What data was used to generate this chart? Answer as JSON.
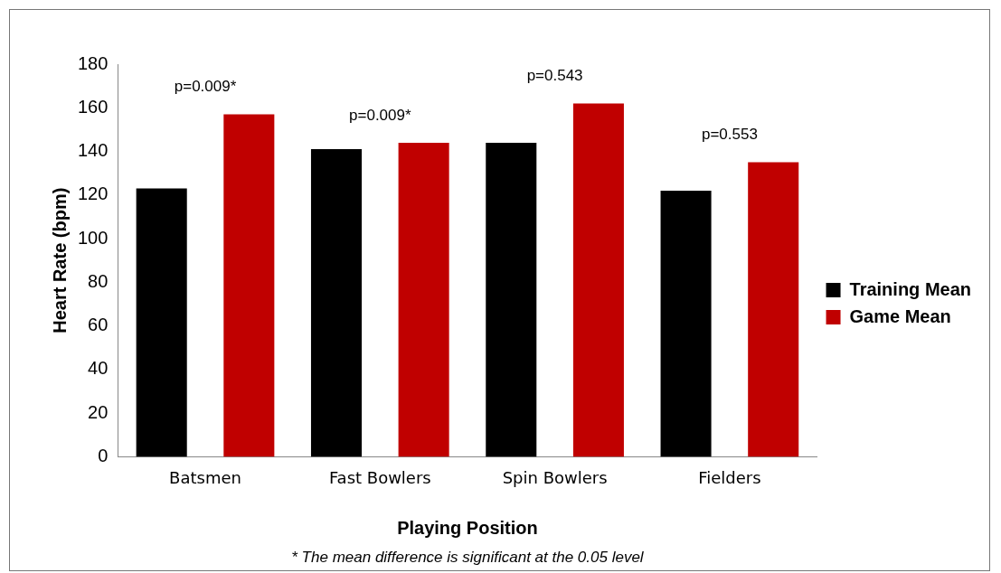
{
  "chart_data": {
    "type": "bar",
    "xlabel": "Playing Position",
    "ylabel": "Heart Rate (bpm)",
    "categories": [
      "Batsmen",
      "Fast Bowlers",
      "Spin Bowlers",
      "Fielders"
    ],
    "series": [
      {
        "name": "Training Mean",
        "color": "#000000",
        "values": [
          123,
          141,
          144,
          122
        ]
      },
      {
        "name": "Game Mean",
        "color": "#c00000",
        "values": [
          157,
          144,
          162,
          135
        ]
      }
    ],
    "ylim": [
      0,
      180
    ],
    "yticks": [
      0,
      20,
      40,
      60,
      80,
      100,
      120,
      140,
      160,
      180
    ],
    "grid": false,
    "legend": "right",
    "annotations": [
      "p=0.009*",
      "p=0.009*",
      "p=0.543",
      "p=0.553",
      "* The mean difference is significant at the 0.05 level"
    ]
  }
}
